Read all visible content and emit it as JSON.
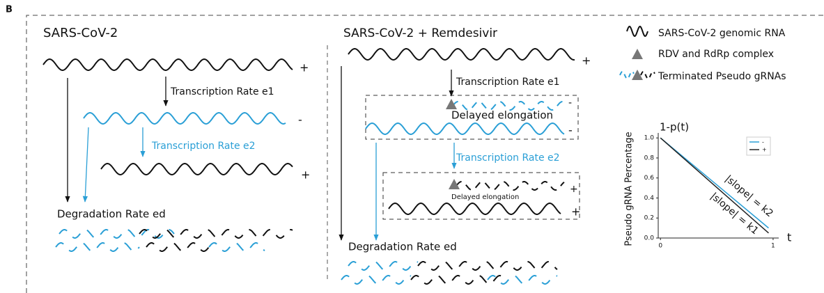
{
  "panel_label": "B",
  "left": {
    "title": "SARS-CoV-2",
    "strand1": "+",
    "strand2": "-",
    "strand3": "+",
    "rate_e1": "Transcription Rate e1",
    "rate_e2": "Transcription Rate e2",
    "degradation": "Degradation Rate ed"
  },
  "middle": {
    "title": "SARS-CoV-2 + Remdesivir",
    "strand1": "+",
    "rate_e1": "Transcription Rate e1",
    "paused_minus": "-",
    "delayed1": "Delayed elongation",
    "strand2": "-",
    "rate_e2": "Transcription Rate e2",
    "paused_plus": "+",
    "delayed2": "Delayed elongation",
    "strand3": "+",
    "degradation": "Degradation Rate ed"
  },
  "legend": {
    "items": [
      "SARS-CoV-2 genomic RNA",
      "RDV and RdRp complex",
      "Terminated Pseudo gRNAs"
    ]
  },
  "chart_data": {
    "type": "line",
    "title": "1-p(t)",
    "xlabel": "t",
    "ylabel": "Pseudo gRNA Percentage",
    "x": [
      0,
      0.96
    ],
    "series": [
      {
        "name": "-",
        "color": "#2a9fd6",
        "values": [
          1.0,
          0.1
        ]
      },
      {
        "name": "+",
        "color": "#222222",
        "values": [
          1.0,
          0.05
        ]
      }
    ],
    "xlim": [
      -0.02,
      1.05
    ],
    "ylim": [
      0,
      1.05
    ],
    "xticks": [
      0,
      1
    ],
    "yticks": [
      {
        "value": 0,
        "label": "0.0"
      },
      {
        "value": 0.2,
        "label": "0.2"
      },
      {
        "value": 0.4,
        "label": "0.4"
      },
      {
        "value": 0.6,
        "label": "0.6"
      },
      {
        "value": 0.8,
        "label": "0.8"
      },
      {
        "value": 1.0,
        "label": "1.0"
      }
    ],
    "annotations": [
      "|slope| = k2",
      "|slope| = k1"
    ]
  }
}
